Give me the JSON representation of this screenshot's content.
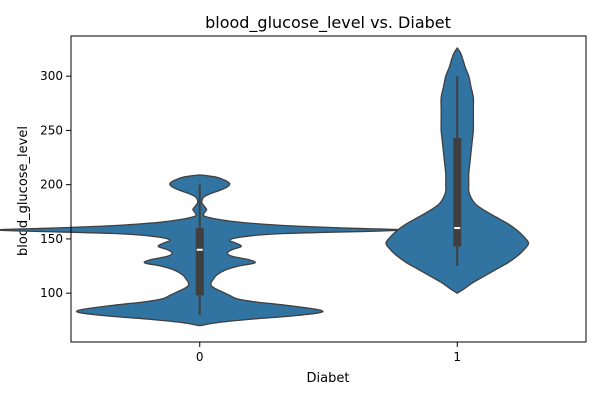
{
  "chart_data": {
    "type": "violin",
    "title": "blood_glucose_level vs. Diabet",
    "xlabel": "Diabet",
    "ylabel": "blood_glucose_level",
    "categories": [
      "0",
      "1"
    ],
    "ylim": [
      55,
      337
    ],
    "yticks": [
      100,
      150,
      200,
      250,
      300
    ],
    "yticklabels": [
      "100",
      "150",
      "200",
      "250",
      "300"
    ],
    "grid": false,
    "legend": "none",
    "colors": {
      "fill": "#3274a1",
      "edge": "#3f3f3f",
      "box": "#3f3f3f",
      "median": "#ffffff"
    },
    "violins": [
      {
        "category": "0",
        "box": {
          "whisker_low": 80,
          "q1": 98,
          "median": 140,
          "q3": 160,
          "whisker_high": 200
        },
        "density": [
          [
            70,
            0.0
          ],
          [
            73,
            0.08
          ],
          [
            76,
            0.22
          ],
          [
            79,
            0.4
          ],
          [
            82,
            0.52
          ],
          [
            84,
            0.53
          ],
          [
            86,
            0.48
          ],
          [
            89,
            0.37
          ],
          [
            92,
            0.24
          ],
          [
            95,
            0.16
          ],
          [
            98,
            0.13
          ],
          [
            101,
            0.1
          ],
          [
            104,
            0.07
          ],
          [
            107,
            0.05
          ],
          [
            110,
            0.05
          ],
          [
            113,
            0.06
          ],
          [
            116,
            0.07
          ],
          [
            119,
            0.09
          ],
          [
            122,
            0.12
          ],
          [
            125,
            0.17
          ],
          [
            128,
            0.24
          ],
          [
            131,
            0.21
          ],
          [
            134,
            0.14
          ],
          [
            137,
            0.12
          ],
          [
            140,
            0.14
          ],
          [
            143,
            0.18
          ],
          [
            146,
            0.16
          ],
          [
            149,
            0.13
          ],
          [
            152,
            0.19
          ],
          [
            155,
            0.37
          ],
          [
            158,
            0.87
          ],
          [
            160,
            0.64
          ],
          [
            162,
            0.4
          ],
          [
            165,
            0.19
          ],
          [
            168,
            0.08
          ],
          [
            171,
            0.02
          ],
          [
            174,
            0.02
          ],
          [
            177,
            0.03
          ],
          [
            180,
            0.02
          ],
          [
            183,
            0.01
          ],
          [
            186,
            0.01
          ],
          [
            189,
            0.02
          ],
          [
            192,
            0.05
          ],
          [
            195,
            0.09
          ],
          [
            198,
            0.12
          ],
          [
            201,
            0.13
          ],
          [
            204,
            0.11
          ],
          [
            207,
            0.07
          ],
          [
            209,
            0.0
          ]
        ]
      },
      {
        "category": "1",
        "box": {
          "whisker_low": 125,
          "q1": 143,
          "median": 160,
          "q3": 243,
          "whisker_high": 300
        },
        "density": [
          [
            100,
            0.0
          ],
          [
            104,
            0.03
          ],
          [
            110,
            0.07
          ],
          [
            116,
            0.12
          ],
          [
            122,
            0.17
          ],
          [
            128,
            0.22
          ],
          [
            134,
            0.26
          ],
          [
            140,
            0.29
          ],
          [
            146,
            0.31
          ],
          [
            152,
            0.29
          ],
          [
            158,
            0.26
          ],
          [
            164,
            0.22
          ],
          [
            170,
            0.17
          ],
          [
            176,
            0.12
          ],
          [
            182,
            0.08
          ],
          [
            188,
            0.06
          ],
          [
            194,
            0.05
          ],
          [
            200,
            0.05
          ],
          [
            210,
            0.05
          ],
          [
            220,
            0.055
          ],
          [
            230,
            0.06
          ],
          [
            240,
            0.065
          ],
          [
            250,
            0.07
          ],
          [
            260,
            0.07
          ],
          [
            270,
            0.07
          ],
          [
            280,
            0.07
          ],
          [
            290,
            0.06
          ],
          [
            300,
            0.05
          ],
          [
            308,
            0.035
          ],
          [
            315,
            0.025
          ],
          [
            321,
            0.015
          ],
          [
            326,
            0.0
          ]
        ]
      }
    ]
  }
}
